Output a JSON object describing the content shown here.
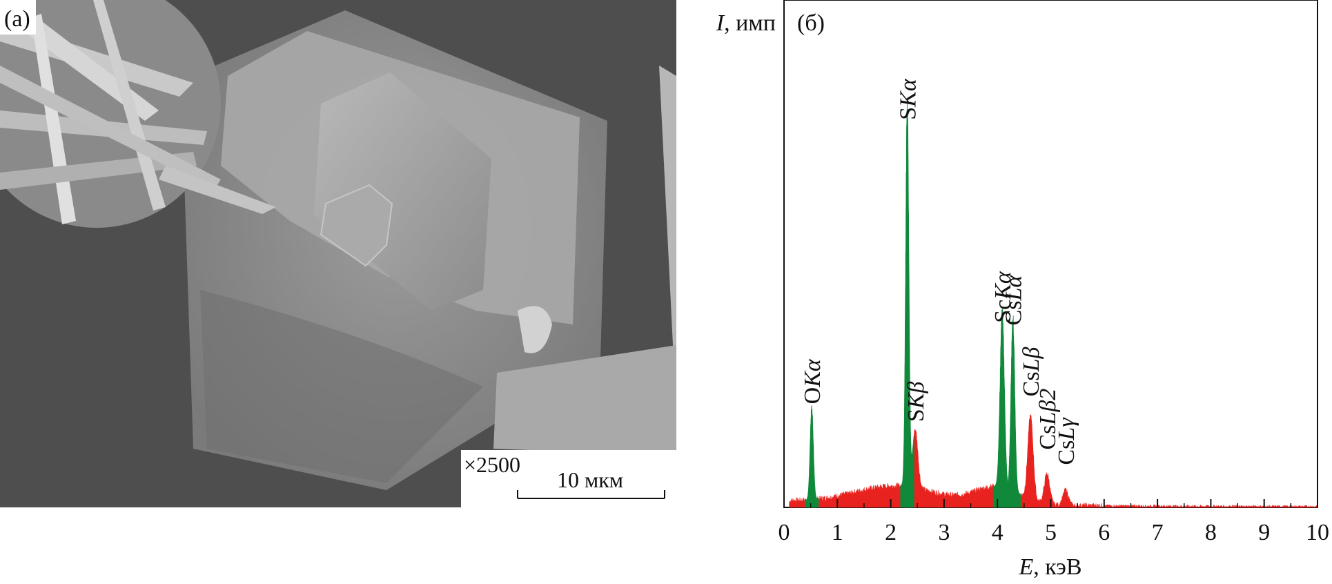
{
  "sem_image": {
    "panel_label": "(а)",
    "magnification": "×2500",
    "scale_bar_label": "10 мкм"
  },
  "chart_data": {
    "type": "area",
    "panel_label": "(б)",
    "ylabel_symbol": "I",
    "ylabel_unit": ", имп",
    "xlabel_symbol": "E",
    "xlabel_unit": ", кэВ",
    "xlim": [
      0,
      10
    ],
    "ylim": [
      0,
      1
    ],
    "x_ticks": [
      "0",
      "1",
      "2",
      "3",
      "4",
      "5",
      "6",
      "7",
      "8",
      "9",
      "10"
    ],
    "colors": {
      "background": "#e8231f",
      "peak": "#11893a"
    },
    "peaks": [
      {
        "label": "OKα",
        "element": "O",
        "line": "Kα",
        "energy": 0.52,
        "height": 0.18,
        "width": 0.03
      },
      {
        "label": "SKα",
        "element": "S",
        "line": "Kα",
        "energy": 2.31,
        "height": 0.74,
        "width": 0.03
      },
      {
        "label": "ScKα",
        "element": "Sc",
        "line": "Kα",
        "energy": 4.09,
        "height": 0.34,
        "width": 0.04
      },
      {
        "label": "CsLα",
        "element": "Cs",
        "line": "Lα",
        "energy": 4.29,
        "height": 0.335,
        "width": 0.035
      }
    ],
    "peak_labels": [
      {
        "label": "SKβ",
        "element": "S",
        "line": "Kβ",
        "energy": 2.46,
        "height": 0.115
      },
      {
        "label": "CsLβ",
        "element": "Cs",
        "line": "Lβ",
        "energy": 4.62,
        "height": 0.165
      },
      {
        "label": "CsLβ2",
        "element": "Cs",
        "line": "Lβ2",
        "energy": 4.93,
        "height": 0.06
      },
      {
        "label": "CsLγ",
        "element": "Cs",
        "line": "Lγ",
        "energy": 5.28,
        "height": 0.03
      }
    ]
  }
}
